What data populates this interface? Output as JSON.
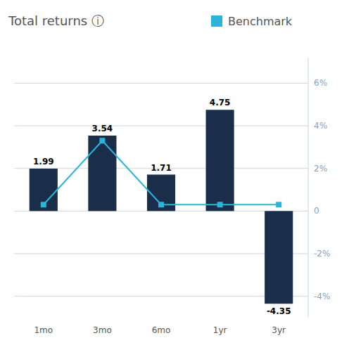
{
  "chart_data": {
    "type": "bar",
    "title": "Total returns ⓘ",
    "categories": [
      "1mo",
      "3mo",
      "6mo",
      "1yr",
      "3yr"
    ],
    "series": [
      {
        "type": "bar",
        "color": "#1a2e4a",
        "data_labels": true,
        "values": [
          1.99,
          3.54,
          1.71,
          4.75,
          -4.35
        ]
      },
      {
        "name": "Benchmark",
        "type": "line",
        "color": "#29b6d8",
        "marker": "square",
        "values": [
          0.3,
          3.3,
          0.3,
          0.3,
          0.3
        ]
      }
    ],
    "ylim": [
      -5.0,
      7.2
    ],
    "yticks": [
      {
        "value": -4,
        "label": "-4%"
      },
      {
        "value": -2,
        "label": "-2%"
      },
      0,
      {
        "value": 2,
        "label": "2%"
      },
      {
        "value": 4,
        "label": "4%"
      },
      {
        "value": 6,
        "label": "6%"
      }
    ],
    "grid": true,
    "legend": "top"
  }
}
